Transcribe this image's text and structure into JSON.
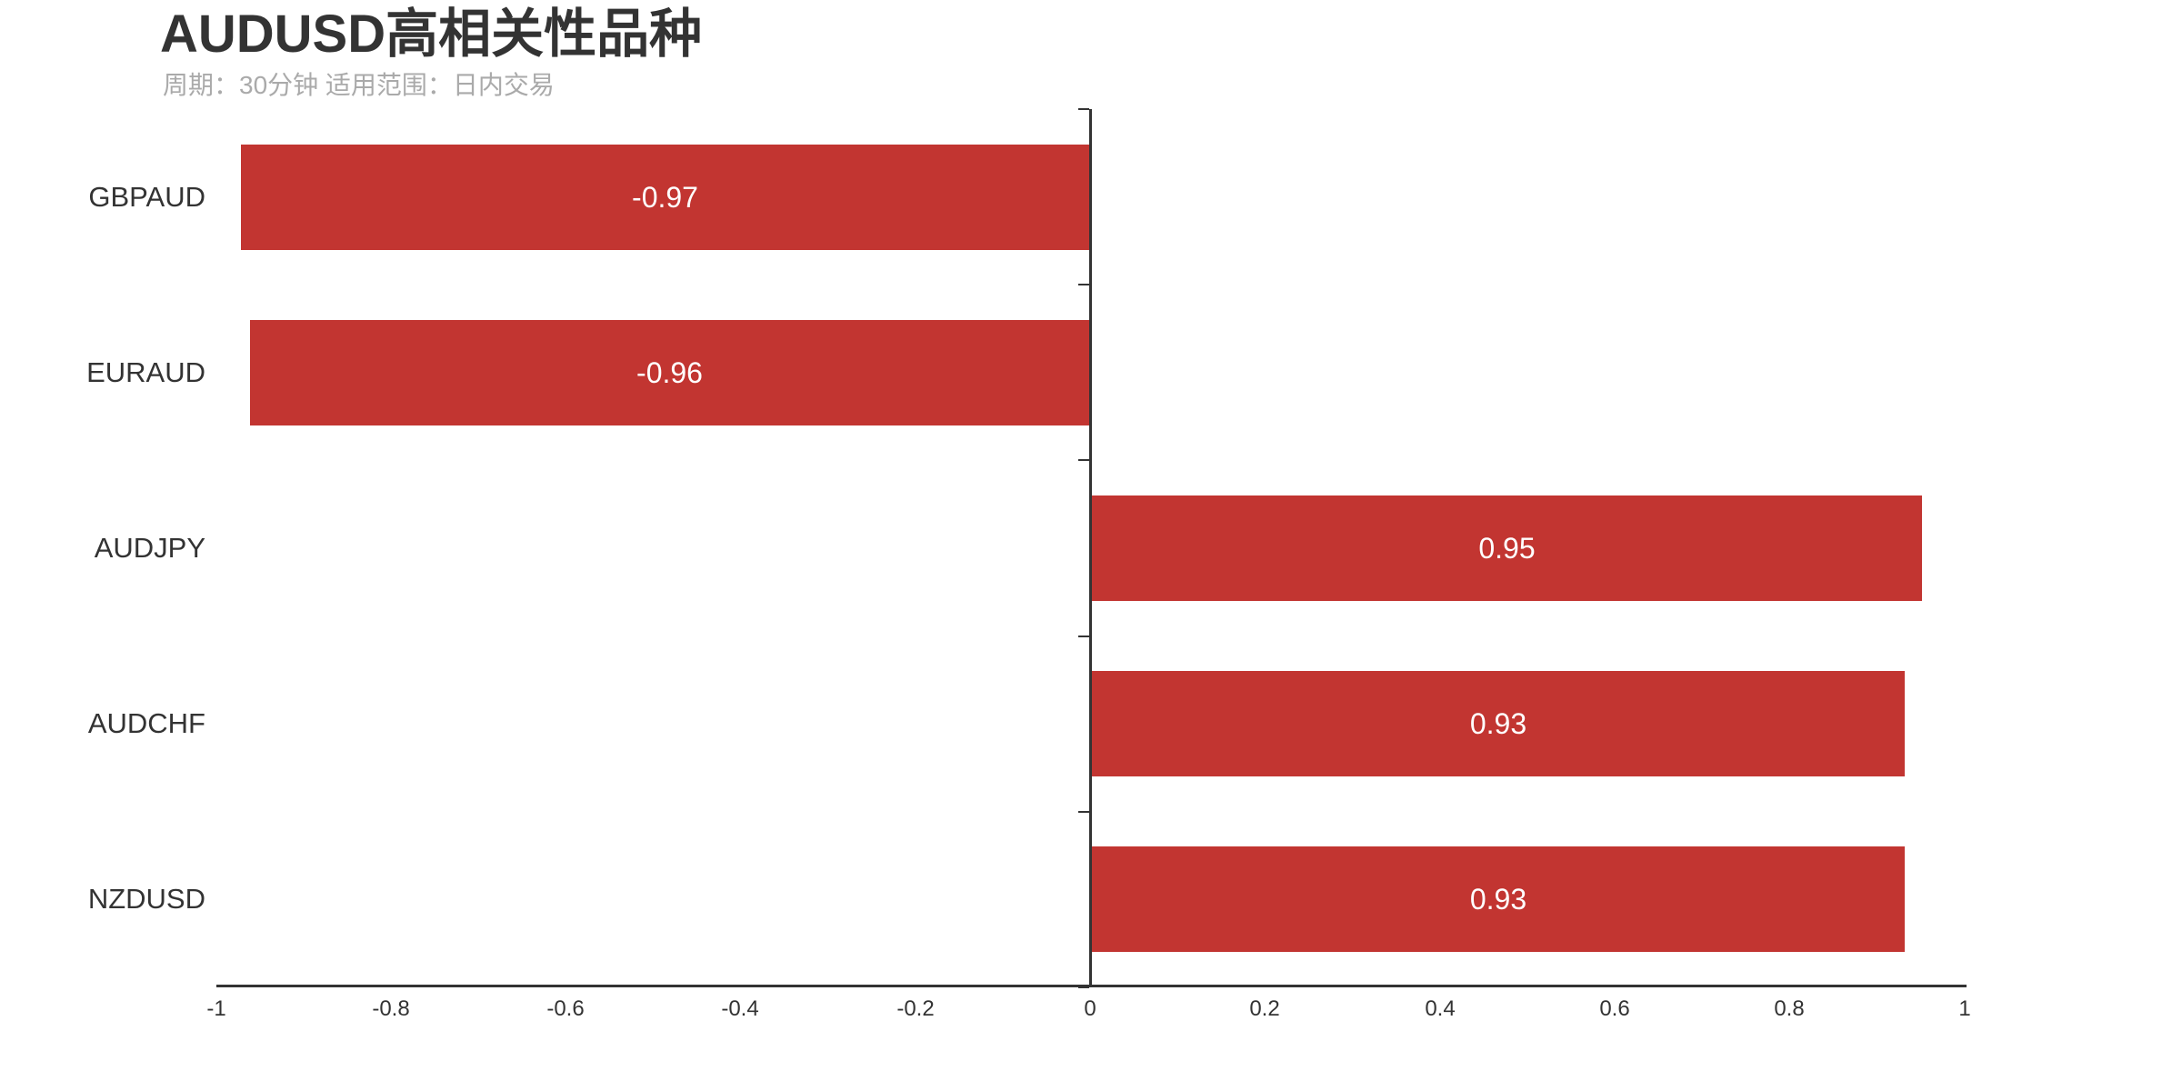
{
  "title": "AUDUSD高相关性品种",
  "subtitle": "周期：30分钟 适用范围：日内交易",
  "colors": {
    "bar": "#c23531",
    "axis": "#333333",
    "title_text": "#333333",
    "subtitle_text": "#aaaaaa",
    "value_label_text": "#ffffff",
    "tick_label_text": "#333333",
    "category_label_text": "#333333",
    "background": "#ffffff"
  },
  "chart_data": {
    "type": "bar",
    "orientation": "horizontal",
    "title": "AUDUSD高相关性品种",
    "subtitle": "周期：30分钟 适用范围：日内交易",
    "categories_top_to_bottom": [
      "GBPAUD",
      "EURAUD",
      "AUDJPY",
      "AUDCHF",
      "NZDUSD"
    ],
    "values": [
      -0.97,
      -0.96,
      0.95,
      0.93,
      0.93
    ],
    "value_labels": [
      "-0.97",
      "-0.96",
      "0.95",
      "0.93",
      "0.93"
    ],
    "value_label_position": "inside-center",
    "xlabel": "",
    "ylabel": "",
    "xlim": [
      -1,
      1
    ],
    "x_ticks": [
      -1,
      -0.8,
      -0.6,
      -0.4,
      -0.2,
      0,
      0.2,
      0.4,
      0.6,
      0.8,
      1
    ],
    "x_tick_labels": [
      "-1",
      "-0.8",
      "-0.6",
      "-0.4",
      "-0.2",
      "0",
      "0.2",
      "0.4",
      "0.6",
      "0.8",
      "1"
    ],
    "grid": false,
    "legend": false,
    "zero_axis_line": true
  }
}
